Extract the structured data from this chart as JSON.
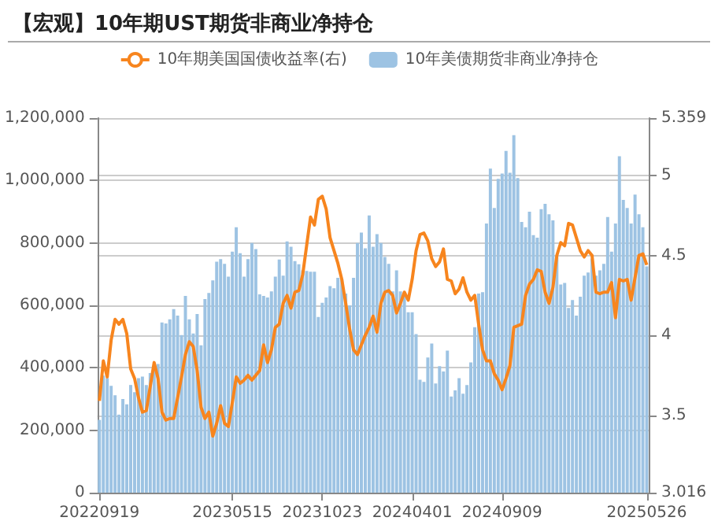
{
  "chart_data": {
    "type": "bar",
    "title": "【宏观】10年期UST期货非商业净持仓",
    "categories": [
      "20220919",
      null,
      null,
      null,
      null,
      null,
      null,
      null,
      null,
      null,
      null,
      null,
      null,
      null,
      null,
      null,
      null,
      null,
      null,
      null,
      null,
      null,
      null,
      null,
      null,
      null,
      null,
      null,
      null,
      null,
      null,
      null,
      null,
      null,
      "20230515",
      null,
      null,
      null,
      null,
      null,
      null,
      null,
      null,
      null,
      null,
      null,
      null,
      null,
      null,
      null,
      null,
      null,
      null,
      null,
      null,
      null,
      null,
      "20231023",
      null,
      null,
      null,
      null,
      null,
      null,
      null,
      null,
      null,
      null,
      null,
      null,
      null,
      null,
      null,
      null,
      null,
      null,
      null,
      null,
      null,
      null,
      "20240401",
      null,
      null,
      null,
      null,
      null,
      null,
      null,
      null,
      null,
      null,
      null,
      null,
      null,
      null,
      null,
      null,
      null,
      null,
      null,
      null,
      null,
      null,
      "20240909",
      null,
      null,
      null,
      null,
      null,
      null,
      null,
      null,
      null,
      null,
      null,
      null,
      null,
      null,
      null,
      null,
      null,
      null,
      null,
      null,
      null,
      null,
      null,
      null,
      null,
      null,
      null,
      null,
      null,
      null,
      null,
      null,
      null,
      null,
      null,
      null,
      "20250526"
    ],
    "series": [
      {
        "name": "10年期美国国债收益率(右)",
        "type": "line",
        "axis": "y2",
        "color": "#f7851e",
        "values": [
          3.59,
          3.84,
          3.74,
          3.97,
          4.1,
          4.07,
          4.1,
          4.01,
          3.79,
          3.73,
          3.61,
          3.52,
          3.53,
          3.68,
          3.83,
          3.73,
          3.52,
          3.47,
          3.48,
          3.48,
          3.61,
          3.74,
          3.88,
          3.96,
          3.93,
          3.78,
          3.55,
          3.48,
          3.52,
          3.37,
          3.45,
          3.56,
          3.45,
          3.43,
          3.58,
          3.74,
          3.7,
          3.72,
          3.75,
          3.72,
          3.75,
          3.78,
          3.94,
          3.83,
          3.91,
          4.05,
          4.07,
          4.2,
          4.25,
          4.17,
          4.27,
          4.28,
          4.38,
          4.56,
          4.74,
          4.69,
          4.85,
          4.87,
          4.79,
          4.61,
          4.53,
          4.45,
          4.35,
          4.2,
          4.04,
          3.91,
          3.88,
          3.94,
          4.0,
          4.05,
          4.12,
          4.02,
          4.2,
          4.27,
          4.28,
          4.25,
          4.14,
          4.2,
          4.27,
          4.22,
          4.35,
          4.53,
          4.63,
          4.64,
          4.59,
          4.48,
          4.43,
          4.46,
          4.54,
          4.35,
          4.34,
          4.26,
          4.29,
          4.36,
          4.27,
          4.22,
          4.25,
          4.07,
          3.91,
          3.84,
          3.84,
          3.76,
          3.72,
          3.66,
          3.73,
          3.81,
          4.05,
          4.06,
          4.07,
          4.25,
          4.32,
          4.35,
          4.41,
          4.4,
          4.27,
          4.2,
          4.3,
          4.5,
          4.58,
          4.56,
          4.7,
          4.69,
          4.61,
          4.53,
          4.49,
          4.53,
          4.5,
          4.27,
          4.26,
          4.27,
          4.27,
          4.33,
          4.11,
          4.35,
          4.34,
          4.35,
          4.22,
          4.36,
          4.5,
          4.51,
          4.44
        ]
      },
      {
        "name": "10年美债期货非商业净持仓",
        "color": "#9dc3e3",
        "values": [
          233000,
          375000,
          367000,
          342000,
          312000,
          250000,
          300000,
          283000,
          345000,
          322000,
          367000,
          372000,
          345000,
          383000,
          408000,
          412000,
          545000,
          542000,
          555000,
          588000,
          567000,
          505000,
          630000,
          555000,
          510000,
          572000,
          472000,
          620000,
          640000,
          680000,
          740000,
          748000,
          733000,
          692000,
          772000,
          850000,
          767000,
          692000,
          748000,
          800000,
          780000,
          635000,
          630000,
          625000,
          645000,
          692000,
          747000,
          695000,
          805000,
          788000,
          742000,
          732000,
          712000,
          710000,
          708000,
          708000,
          563000,
          608000,
          625000,
          662000,
          655000,
          688000,
          683000,
          638000,
          600000,
          688000,
          800000,
          833000,
          783000,
          888000,
          788000,
          828000,
          800000,
          755000,
          733000,
          645000,
          712000,
          645000,
          638000,
          578000,
          578000,
          508000,
          362000,
          355000,
          433000,
          478000,
          350000,
          405000,
          388000,
          455000,
          308000,
          328000,
          367000,
          317000,
          345000,
          417000,
          530000,
          638000,
          642000,
          862000,
          1038000,
          912000,
          1005000,
          1022000,
          1095000,
          1025000,
          1145000,
          1008000,
          867000,
          850000,
          900000,
          825000,
          817000,
          908000,
          925000,
          892000,
          872000,
          755000,
          667000,
          672000,
          592000,
          617000,
          567000,
          628000,
          695000,
          705000,
          750000,
          695000,
          712000,
          733000,
          883000,
          772000,
          862000,
          1078000,
          938000,
          912000,
          862000,
          955000,
          892000,
          850000,
          725000
        ]
      }
    ],
    "ylim": [
      0,
      1200000
    ],
    "yticks": [
      0,
      {
        "value": 200000,
        "label": "200,000"
      },
      {
        "value": 400000,
        "label": "400,000"
      },
      {
        "value": 600000,
        "label": "600,000"
      },
      {
        "value": 800000,
        "label": "800,000"
      },
      {
        "value": 1000000,
        "label": "1,000,000"
      },
      {
        "value": 1200000,
        "label": "1,200,000"
      }
    ],
    "y2lim": [
      3.016,
      5.359
    ],
    "y2ticks": [
      3.016,
      3.5,
      4,
      4.5,
      5,
      5.359
    ],
    "grid": "y",
    "legend": "top"
  }
}
